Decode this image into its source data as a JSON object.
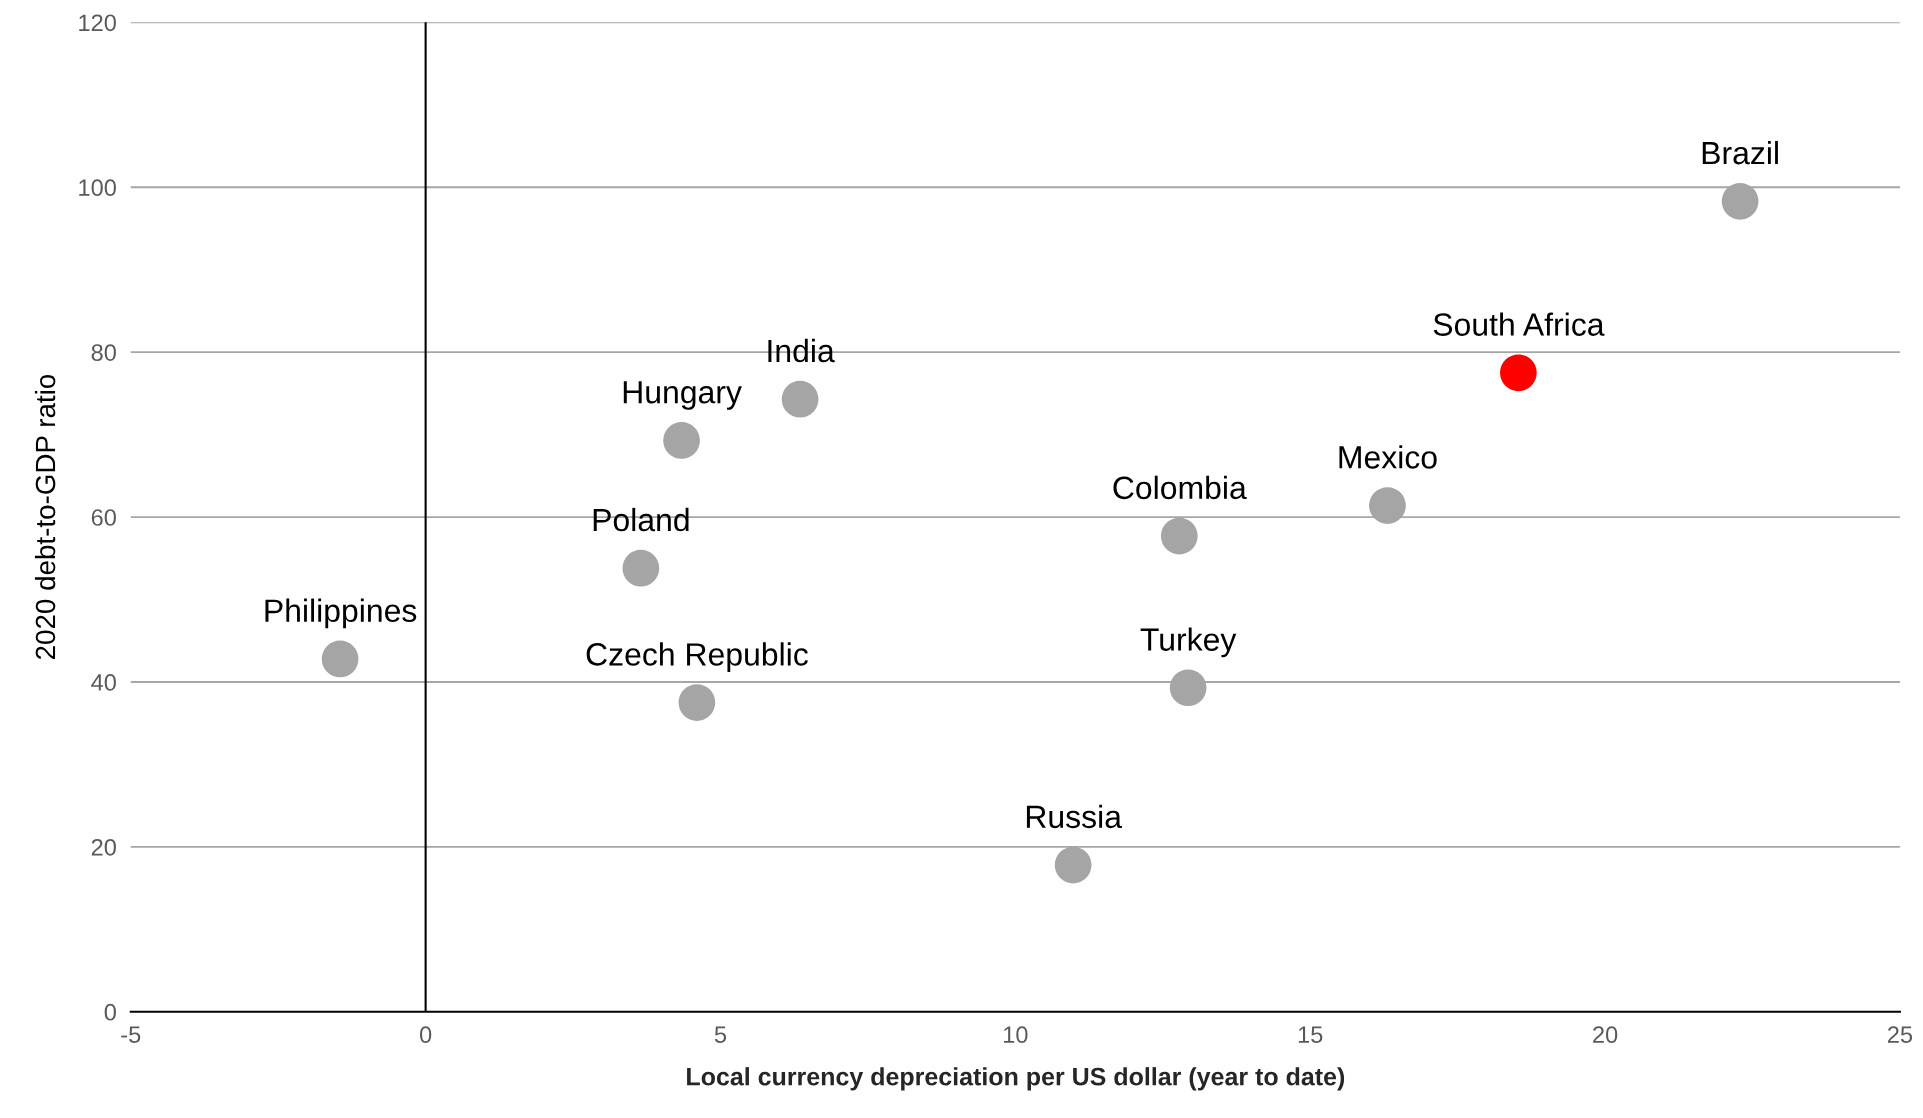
{
  "chart_data": {
    "type": "scatter",
    "xlabel": "Local currency depreciation per US dollar (year to date)",
    "ylabel": "2020 debt-to-GDP ratio",
    "x": [
      -1.45,
      3.65,
      4.34,
      6.35,
      4.6,
      10.98,
      12.78,
      12.93,
      16.31,
      18.53,
      22.29
    ],
    "values": [
      42.8,
      53.8,
      69.3,
      74.3,
      37.5,
      17.8,
      57.7,
      39.3,
      61.4,
      77.5,
      98.3
    ],
    "colors": [
      "#a5a5a5",
      "#a5a5a5",
      "#a5a5a5",
      "#a5a5a5",
      "#a5a5a5",
      "#a5a5a5",
      "#a5a5a5",
      "#a5a5a5",
      "#a5a5a5",
      "#ff0000",
      "#a5a5a5"
    ],
    "annotations": [
      {
        "text": "Philippines",
        "x": -1.45,
        "y": 42.8
      },
      {
        "text": "Poland",
        "x": 3.65,
        "y": 53.8
      },
      {
        "text": "Hungary",
        "x": 4.34,
        "y": 69.3
      },
      {
        "text": "India",
        "x": 6.35,
        "y": 74.3
      },
      {
        "text": "Czech Republic",
        "x": 4.6,
        "y": 37.5
      },
      {
        "text": "Russia",
        "x": 10.98,
        "y": 17.8
      },
      {
        "text": "Colombia",
        "x": 12.78,
        "y": 57.7
      },
      {
        "text": "Turkey",
        "x": 12.93,
        "y": 39.3
      },
      {
        "text": "Mexico",
        "x": 16.31,
        "y": 61.4
      },
      {
        "text": "South Africa",
        "x": 18.53,
        "y": 77.5
      },
      {
        "text": "Brazil",
        "x": 22.29,
        "y": 98.3
      }
    ],
    "xlim": [
      -5,
      25
    ],
    "xticks": [
      -5,
      0,
      5,
      10,
      15,
      20,
      25
    ],
    "ylim": [
      0,
      120
    ],
    "yticks": [
      0,
      20,
      40,
      60,
      80,
      100,
      120
    ],
    "grid": "y",
    "ref_lines": [
      {
        "axis": "x",
        "value": 0,
        "color": "#000000"
      }
    ]
  }
}
